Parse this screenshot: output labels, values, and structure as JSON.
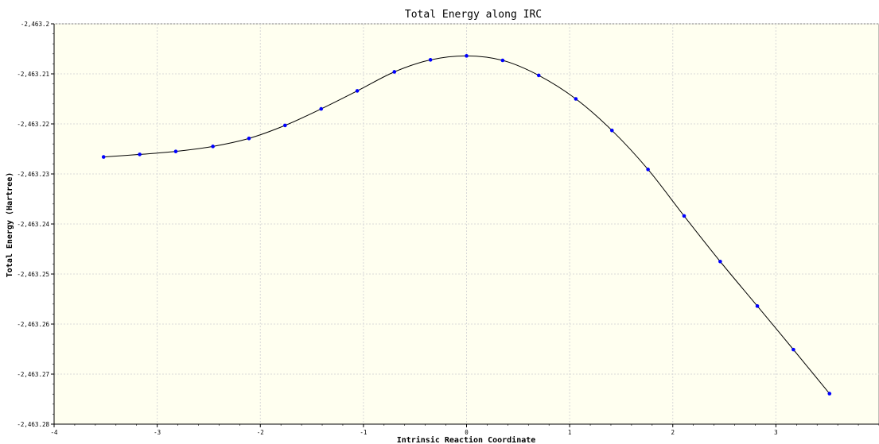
{
  "chart_data": {
    "type": "line",
    "title": "Total Energy along IRC",
    "xlabel": "Intrinsic Reaction Coordinate",
    "ylabel": "Total Energy (Hartree)",
    "xlim": [
      -4,
      4
    ],
    "ylim": [
      -2463.28,
      -2463.2
    ],
    "xticks": [
      -4,
      -3,
      -2,
      -1,
      0,
      1,
      2,
      3
    ],
    "xtick_labels": [
      "-4",
      "-3",
      "-2",
      "-1",
      "0",
      "1",
      "2",
      "3"
    ],
    "yticks": [
      -2463.2,
      -2463.21,
      -2463.22,
      -2463.23,
      -2463.24,
      -2463.25,
      -2463.26,
      -2463.27,
      -2463.28
    ],
    "ytick_labels": [
      "-2,463.2",
      "-2,463.21",
      "-2,463.22",
      "-2,463.23",
      "-2,463.24",
      "-2,463.25",
      "-2,463.26",
      "-2,463.27",
      "-2,463.28"
    ],
    "grid": true,
    "colors": {
      "plot_background": "#fffff0",
      "line": "#000000",
      "marker": "#0000ff",
      "grid": "#d8d8d8"
    },
    "series": [
      {
        "x": [
          -3.52,
          -3.17,
          -2.82,
          -2.46,
          -2.11,
          -1.76,
          -1.41,
          -1.06,
          -0.7,
          -0.35,
          0,
          0.35,
          0.7,
          1.06,
          1.41,
          1.76,
          2.11,
          2.46,
          2.82,
          3.17,
          3.52
        ],
        "y": [
          -2463.2266,
          -2463.2261,
          -2463.2255,
          -2463.2245,
          -2463.2229,
          -2463.2203,
          -2463.217,
          -2463.2134,
          -2463.2096,
          -2463.2072,
          -2463.2064,
          -2463.2073,
          -2463.2103,
          -2463.215,
          -2463.2213,
          -2463.2291,
          -2463.2384,
          -2463.2475,
          -2463.2564,
          -2463.2651,
          -2463.2739
        ]
      }
    ]
  }
}
